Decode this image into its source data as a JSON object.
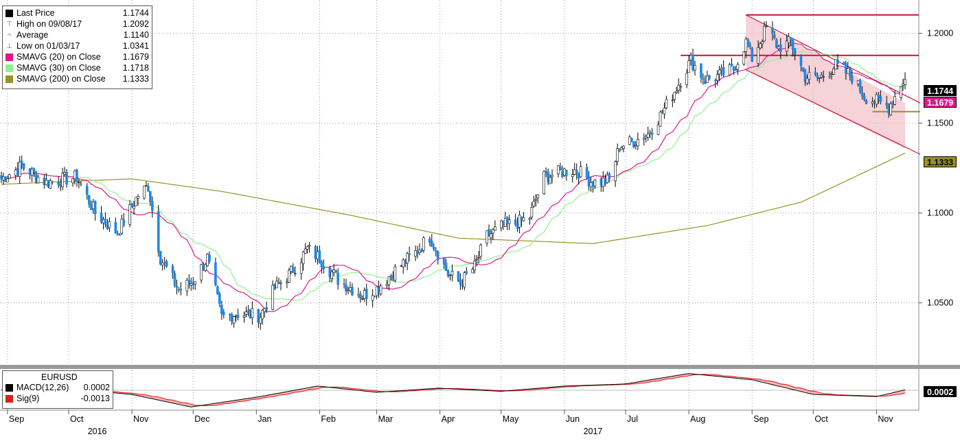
{
  "legend": {
    "items": [
      {
        "label": "Last Price",
        "value": "1.1744",
        "glyph": "black-square",
        "color": "#000000"
      },
      {
        "label": "High on 09/08/17",
        "value": "1.2092",
        "glyph": "high-marker"
      },
      {
        "label": "Average",
        "value": "1.1140",
        "glyph": "average-marker"
      },
      {
        "label": "Low on 01/03/17",
        "value": "1.0341",
        "glyph": "low-marker"
      },
      {
        "label": "SMAVG (20) on Close",
        "value": "1.1679",
        "glyph": "swatch",
        "color": "#e0188c"
      },
      {
        "label": "SMAVG (30) on Close",
        "value": "1.1718",
        "glyph": "swatch",
        "color": "#8ef08e"
      },
      {
        "label": "SMAVG (200) on Close",
        "value": "1.1333",
        "glyph": "swatch",
        "color": "#9a9222"
      }
    ]
  },
  "macd_legend": {
    "title": "EURUSD",
    "items": [
      {
        "label": "MACD(12,26)",
        "value": "0.0002",
        "color": "#000000"
      },
      {
        "label": "Sig(9)",
        "value": "-0.0013",
        "color": "#e31a1c"
      }
    ]
  },
  "badges": {
    "last": {
      "text": "1.1744",
      "bg": "#000000",
      "fg": "#ffffff"
    },
    "sma20": {
      "text": "1.1679",
      "bg": "#e0188c",
      "fg": "#ffffff"
    },
    "sma200": {
      "text": "1.1333",
      "bg": "#9a9222",
      "fg": "#000000"
    },
    "macd": {
      "text": "0.0002",
      "bg": "#000000",
      "fg": "#ffffff"
    }
  },
  "colors": {
    "up": "#ffffff",
    "down": "#1e88e5",
    "sma20": "#e0188c",
    "sma30": "#8ef08e",
    "sma200": "#9a9222",
    "channel_fill": "#f2c4cc",
    "channel_line": "#cc1133",
    "resistance": "#cc1133",
    "support": "#9a9222",
    "macd": "#000000",
    "signal": "#e31a1c",
    "macd_fill": "#f4a8a8"
  },
  "chart_data": {
    "type": "candlestick",
    "instrument": "EURUSD",
    "x_tick_labels": [
      "Sep",
      "Oct",
      "Nov",
      "Dec",
      "Jan",
      "Feb",
      "Mar",
      "Apr",
      "May",
      "Jun",
      "Jul",
      "Aug",
      "Sep",
      "Oct",
      "Nov"
    ],
    "x_tick_dates": [
      "2016-09",
      "2016-10",
      "2016-11",
      "2016-12",
      "2017-01",
      "2017-02",
      "2017-03",
      "2017-04",
      "2017-05",
      "2017-06",
      "2017-07",
      "2017-08",
      "2017-09",
      "2017-10",
      "2017-11"
    ],
    "year_labels": [
      {
        "label": "2016",
        "date": "2016-10-15"
      },
      {
        "label": "2017",
        "date": "2017-06-15"
      }
    ],
    "x_range": [
      "2016-08-29",
      "2017-11-15"
    ],
    "y_ticks": [
      "1.2000",
      "1.1500",
      "1.1000",
      "1.0500"
    ],
    "y_tick_values": [
      1.2,
      1.15,
      1.1,
      1.05
    ],
    "ylim": [
      1.0155,
      1.2185
    ],
    "grid": true,
    "close_anchors": [
      [
        "2016-08-29",
        1.119
      ],
      [
        "2016-09-08",
        1.126
      ],
      [
        "2016-09-20",
        1.117
      ],
      [
        "2016-10-05",
        1.12
      ],
      [
        "2016-10-14",
        1.1
      ],
      [
        "2016-10-25",
        1.089
      ],
      [
        "2016-11-04",
        1.11
      ],
      [
        "2016-11-09",
        1.115
      ],
      [
        "2016-11-15",
        1.075
      ],
      [
        "2016-11-24",
        1.057
      ],
      [
        "2016-12-01",
        1.062
      ],
      [
        "2016-12-08",
        1.075
      ],
      [
        "2016-12-15",
        1.042
      ],
      [
        "2016-12-22",
        1.044
      ],
      [
        "2017-01-03",
        1.043
      ],
      [
        "2017-01-10",
        1.058
      ],
      [
        "2017-01-18",
        1.067
      ],
      [
        "2017-01-26",
        1.08
      ],
      [
        "2017-02-01",
        1.075
      ],
      [
        "2017-02-10",
        1.063
      ],
      [
        "2017-02-22",
        1.054
      ],
      [
        "2017-03-01",
        1.058
      ],
      [
        "2017-03-10",
        1.068
      ],
      [
        "2017-03-20",
        1.078
      ],
      [
        "2017-03-27",
        1.087
      ],
      [
        "2017-04-05",
        1.066
      ],
      [
        "2017-04-11",
        1.061
      ],
      [
        "2017-04-18",
        1.07
      ],
      [
        "2017-04-24",
        1.087
      ],
      [
        "2017-05-02",
        1.093
      ],
      [
        "2017-05-08",
        1.094
      ],
      [
        "2017-05-15",
        1.098
      ],
      [
        "2017-05-22",
        1.12
      ],
      [
        "2017-05-31",
        1.123
      ],
      [
        "2017-06-07",
        1.124
      ],
      [
        "2017-06-15",
        1.117
      ],
      [
        "2017-06-23",
        1.118
      ],
      [
        "2017-06-28",
        1.137
      ],
      [
        "2017-07-05",
        1.14
      ],
      [
        "2017-07-12",
        1.144
      ],
      [
        "2017-07-19",
        1.156
      ],
      [
        "2017-07-27",
        1.172
      ],
      [
        "2017-08-02",
        1.185
      ],
      [
        "2017-08-09",
        1.174
      ],
      [
        "2017-08-15",
        1.176
      ],
      [
        "2017-08-23",
        1.18
      ],
      [
        "2017-08-29",
        1.195
      ],
      [
        "2017-09-01",
        1.186
      ],
      [
        "2017-09-08",
        1.203
      ],
      [
        "2017-09-14",
        1.192
      ],
      [
        "2017-09-20",
        1.195
      ],
      [
        "2017-09-27",
        1.176
      ],
      [
        "2017-10-04",
        1.175
      ],
      [
        "2017-10-12",
        1.182
      ],
      [
        "2017-10-20",
        1.176
      ],
      [
        "2017-10-26",
        1.165
      ],
      [
        "2017-11-03",
        1.161
      ],
      [
        "2017-11-07",
        1.159
      ],
      [
        "2017-11-10",
        1.165
      ],
      [
        "2017-11-14",
        1.174
      ],
      [
        "2017-11-15",
        1.1744
      ]
    ],
    "series": [
      {
        "name": "SMAVG (20) on Close",
        "last": 1.1679
      },
      {
        "name": "SMAVG (30) on Close",
        "last": 1.1718
      },
      {
        "name": "SMAVG (200) on Close",
        "last": 1.1333,
        "anchors": [
          [
            "2016-08-29",
            1.116
          ],
          [
            "2016-11-01",
            1.119
          ],
          [
            "2016-12-15",
            1.112
          ],
          [
            "2017-02-15",
            1.099
          ],
          [
            "2017-04-10",
            1.086
          ],
          [
            "2017-06-15",
            1.083
          ],
          [
            "2017-08-10",
            1.093
          ],
          [
            "2017-09-25",
            1.106
          ],
          [
            "2017-11-15",
            1.1333
          ]
        ]
      }
    ],
    "annotations": {
      "channel": {
        "upper": [
          [
            "2017-08-29",
            1.2102
          ],
          [
            "2017-11-15",
            1.1612
          ]
        ],
        "lower": [
          [
            "2017-08-29",
            1.1797
          ],
          [
            "2017-11-15",
            1.1357
          ]
        ]
      },
      "resistance_top": {
        "value": 1.2102,
        "from": "2017-08-29",
        "to": "2017-11-15"
      },
      "resistance_mid": {
        "value": 1.1877,
        "from": "2017-07-28",
        "to": "2017-11-15"
      },
      "support": {
        "value": 1.1564,
        "from": "2017-10-30",
        "to": "2017-11-15"
      }
    },
    "macd": {
      "anchors": [
        [
          "2016-08-29",
          0.0002
        ],
        [
          "2016-10-05",
          0.0003
        ],
        [
          "2016-11-01",
          -0.002
        ],
        [
          "2016-11-30",
          -0.008
        ],
        [
          "2017-01-03",
          -0.003
        ],
        [
          "2017-01-31",
          0.002
        ],
        [
          "2017-03-01",
          -0.001
        ],
        [
          "2017-03-31",
          0.001
        ],
        [
          "2017-05-01",
          -0.0005
        ],
        [
          "2017-06-01",
          0.002
        ],
        [
          "2017-07-01",
          0.003
        ],
        [
          "2017-08-01",
          0.008
        ],
        [
          "2017-09-01",
          0.005
        ],
        [
          "2017-10-01",
          -0.002
        ],
        [
          "2017-11-01",
          -0.003
        ],
        [
          "2017-11-15",
          0.0002
        ]
      ],
      "signal_last": -0.0013
    }
  }
}
